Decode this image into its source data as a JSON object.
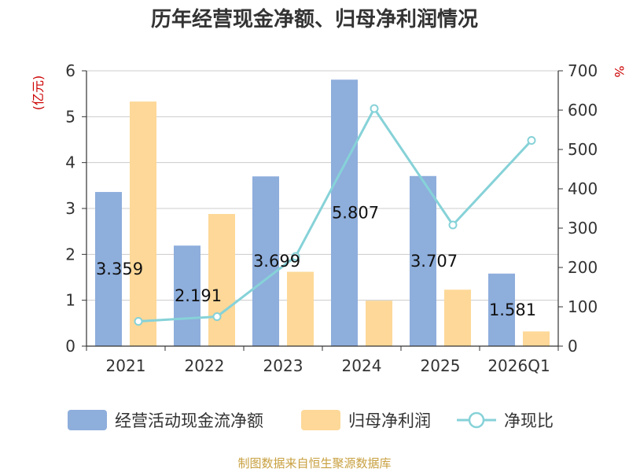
{
  "title": "历年经营现金净额、归母净利润情况",
  "source": "制图数据来自恒生聚源数据库",
  "colors": {
    "operating_cash": "#8eaedc",
    "net_profit": "#fdd898",
    "ratio": "#86d2d8",
    "grid": "#cccccc",
    "axis": "#333333",
    "unit": "#cc0000"
  },
  "chart_data": {
    "type": "bar",
    "title": "历年经营现金净额、归母净利润情况",
    "categories": [
      "2021",
      "2022",
      "2023",
      "2024",
      "2025",
      "2026Q1"
    ],
    "left_axis": {
      "unit": "(亿元)",
      "min": 0,
      "max": 6,
      "ticks": [
        "0",
        "1",
        "2",
        "3",
        "4",
        "5",
        "6"
      ]
    },
    "right_axis": {
      "unit": "%",
      "min": 0,
      "max": 700,
      "ticks": [
        "0",
        "100",
        "200",
        "300",
        "400",
        "500",
        "600",
        "700"
      ]
    },
    "grid": true,
    "legend_position": "bottom",
    "series": [
      {
        "name": "经营活动现金流净额",
        "type": "bar",
        "axis": "left",
        "values": [
          3.359,
          2.191,
          3.699,
          5.807,
          3.707,
          1.581
        ],
        "labels": [
          "3.359",
          "2.191",
          "3.699",
          "5.807",
          "3.707",
          "1.581"
        ]
      },
      {
        "name": "归母净利润",
        "type": "bar",
        "axis": "left",
        "values": [
          5.33,
          2.88,
          1.62,
          0.99,
          1.23,
          0.32
        ]
      },
      {
        "name": "净现比",
        "type": "line",
        "axis": "right",
        "values": [
          63,
          75,
          228,
          604,
          308,
          523
        ]
      }
    ]
  }
}
